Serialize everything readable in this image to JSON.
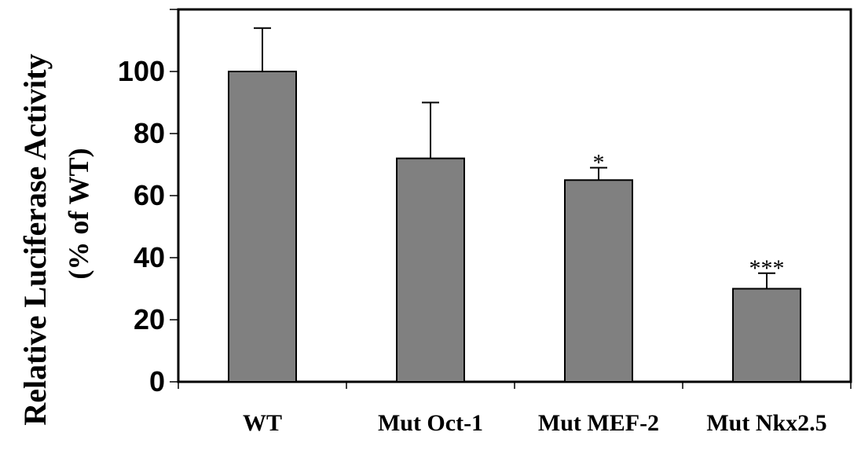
{
  "chart_data": {
    "type": "bar",
    "categories": [
      "WT",
      "Mut Oct-1",
      "Mut MEF-2",
      "Mut Nkx2.5"
    ],
    "values": [
      100,
      72,
      65,
      30
    ],
    "errors": [
      14,
      18,
      4,
      5
    ],
    "annotations": [
      "",
      "",
      "*",
      "***"
    ],
    "ylabel": "Relative Luciferase Activity",
    "ylabel_sub": "(% of WT)",
    "xlabel": "",
    "yticks": [
      0,
      20,
      40,
      60,
      80,
      100
    ],
    "ylim": [
      0,
      120
    ],
    "grid": false,
    "legend": "none",
    "colors": {
      "bar_fill": "#808080",
      "bar_stroke": "#000000",
      "axis": "#000000"
    }
  }
}
